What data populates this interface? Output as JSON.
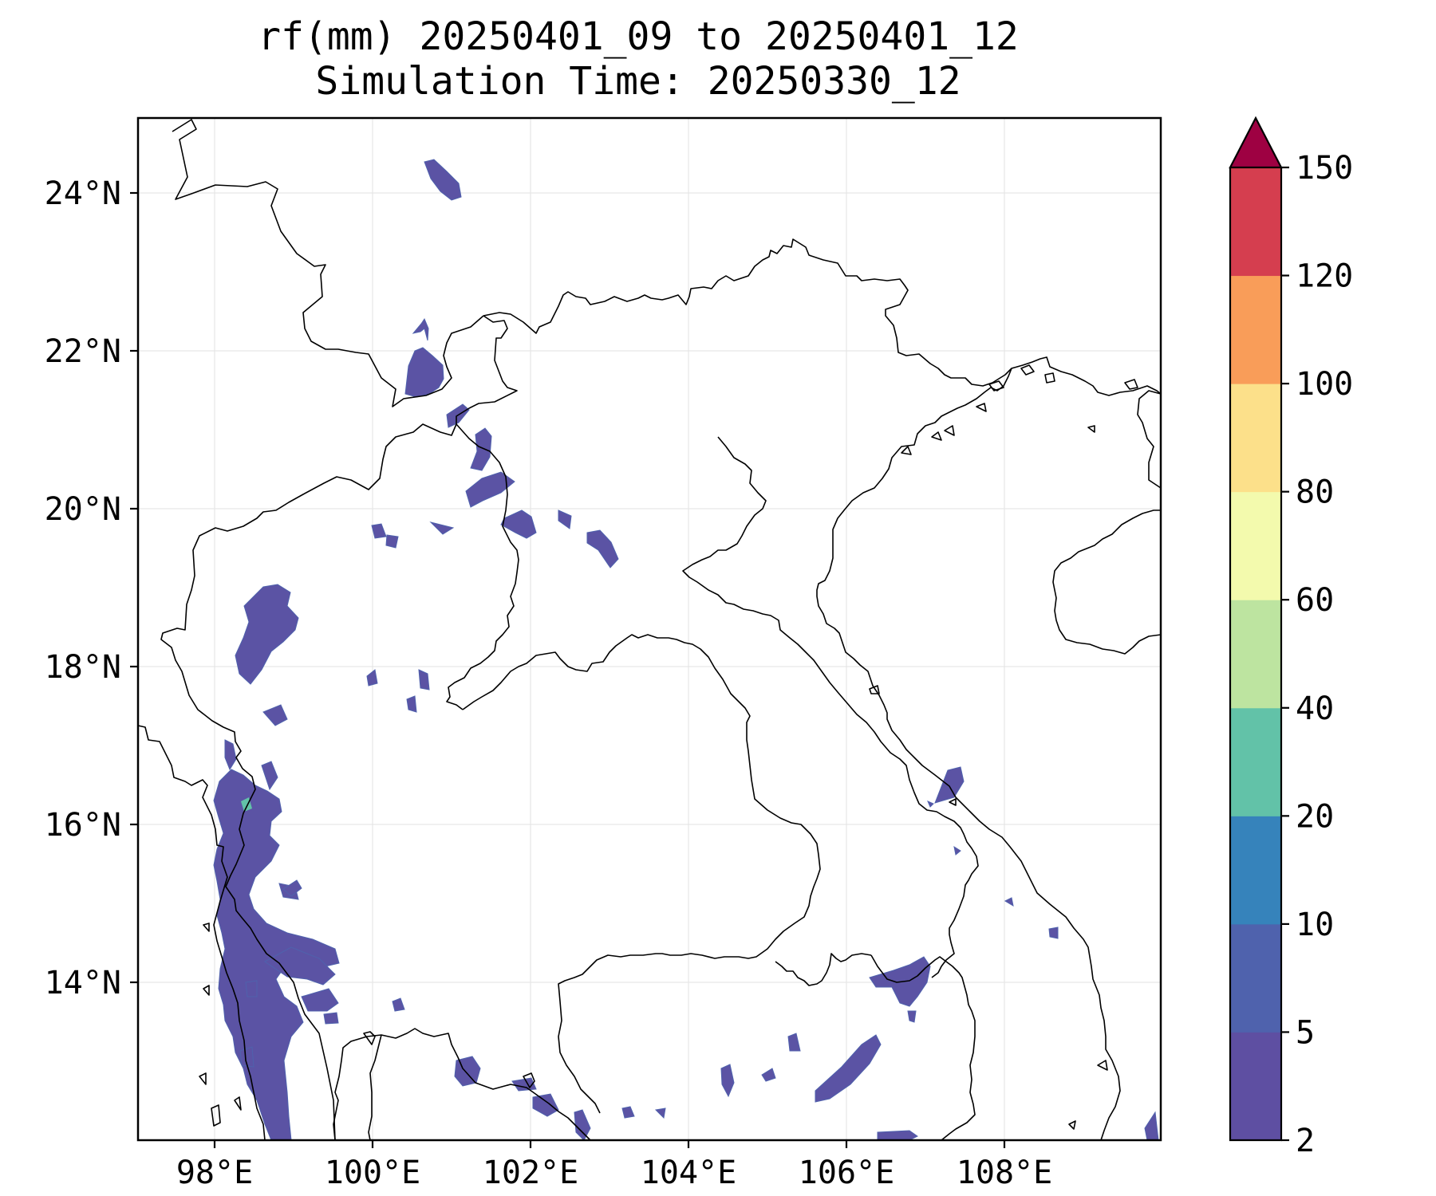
{
  "title": {
    "line1": "rf(mm) 20250401_09 to 20250401_12",
    "line2": "Simulation Time: 20250330_12"
  },
  "map": {
    "lon_ticks": [
      "98°E",
      "100°E",
      "102°E",
      "104°E",
      "106°E",
      "108°E"
    ],
    "lat_ticks": [
      "24°N",
      "22°N",
      "20°N",
      "18°N",
      "16°N",
      "14°N"
    ],
    "rainfall_color": "#5b53a4"
  },
  "colorbar": {
    "levels": [
      "2",
      "5",
      "10",
      "20",
      "40",
      "60",
      "80",
      "100",
      "120",
      "150"
    ],
    "colors": [
      "#5e4fa2",
      "#4f62ad",
      "#3683bb",
      "#62c2a8",
      "#bde4a0",
      "#f3faad",
      "#fce08a",
      "#f99d59",
      "#d53e4f",
      "#9e0142"
    ],
    "extend": "max"
  }
}
